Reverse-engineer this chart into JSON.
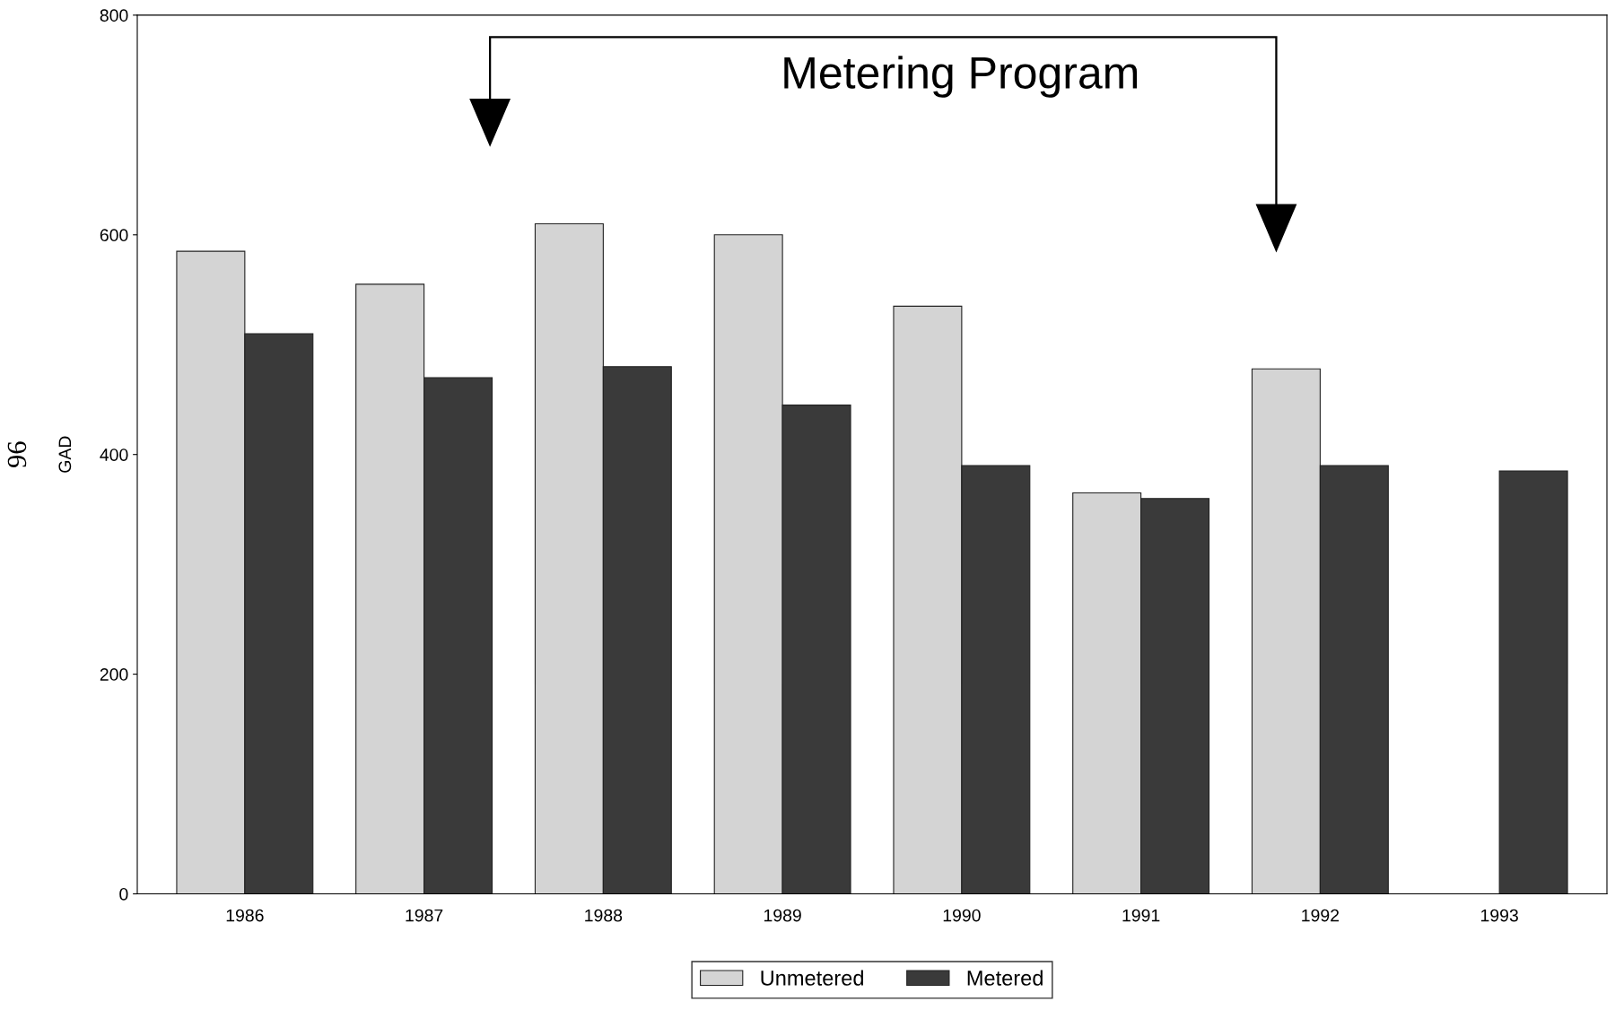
{
  "chart_data": {
    "type": "bar",
    "ylabel": "GAD",
    "categories": [
      "1986",
      "1987",
      "1988",
      "1989",
      "1990",
      "1991",
      "1992",
      "1993"
    ],
    "series": [
      {
        "name": "Unmetered",
        "color": "#d4d4d4",
        "values": [
          585,
          555,
          610,
          600,
          535,
          365,
          478,
          null
        ]
      },
      {
        "name": "Metered",
        "color": "#3a3a3a",
        "values": [
          510,
          470,
          480,
          445,
          390,
          360,
          390,
          385
        ]
      }
    ],
    "ylim": [
      0,
      800
    ],
    "yticks": [
      0,
      200,
      400,
      600,
      800
    ],
    "grid": false,
    "legend": "bottom",
    "annotations": [
      "Metering Program",
      "96"
    ]
  }
}
